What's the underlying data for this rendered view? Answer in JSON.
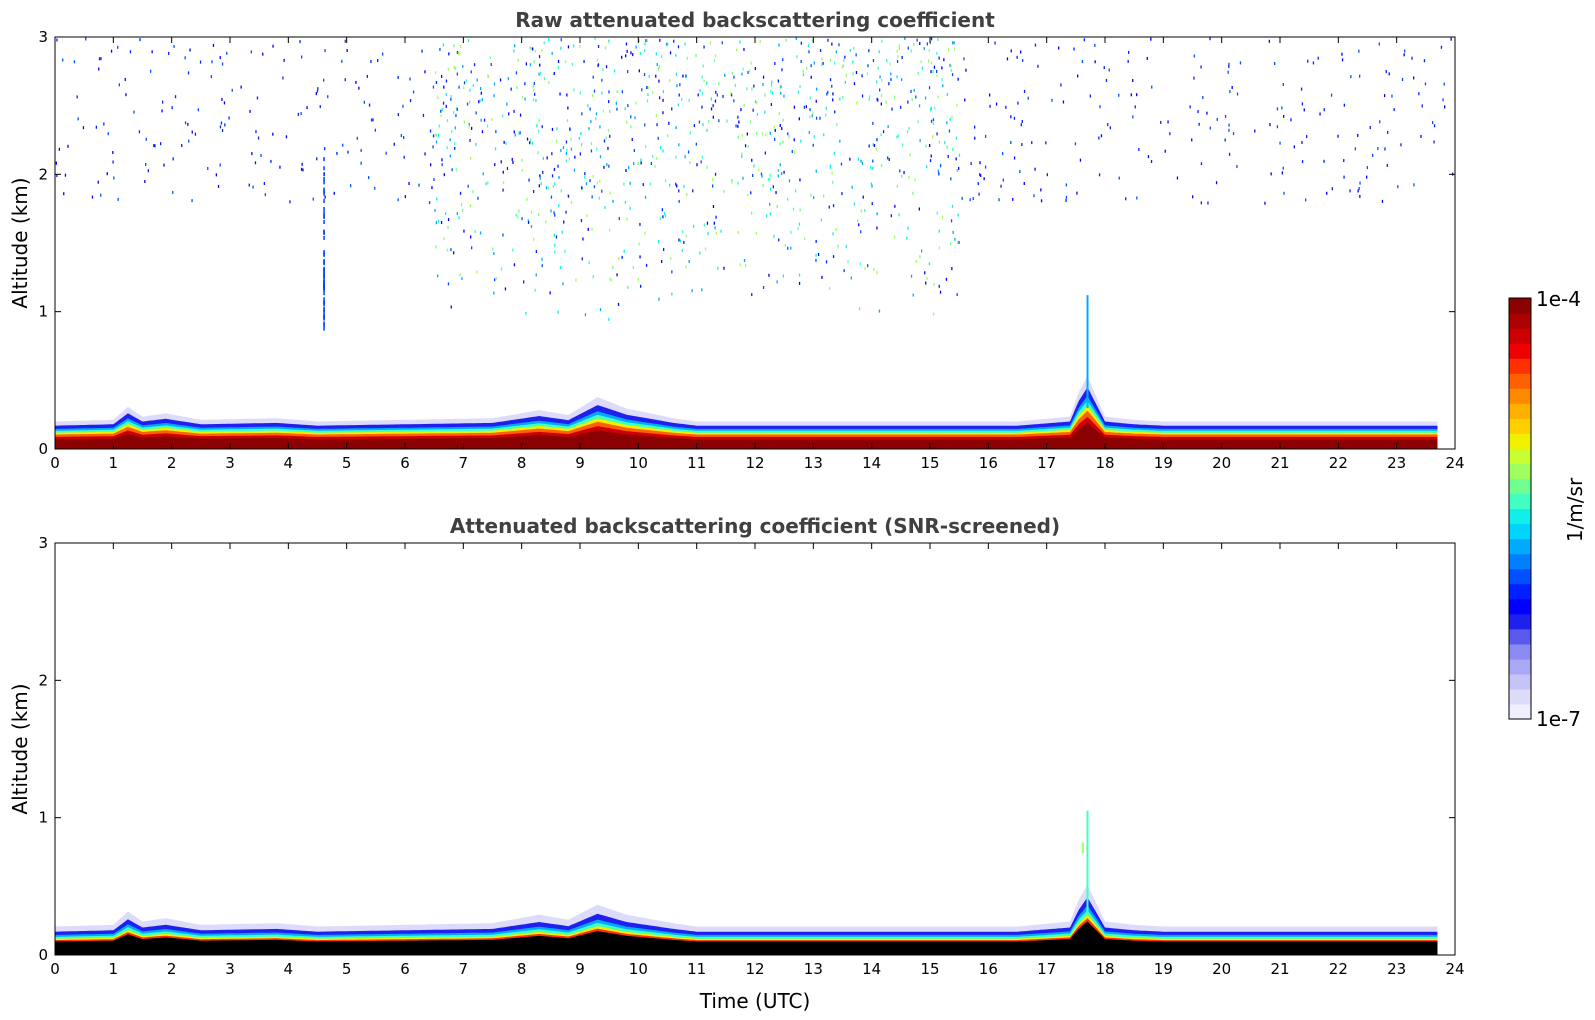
{
  "chart_data": [
    {
      "type": "heatmap",
      "title": "Raw attenuated backscattering coefficient",
      "xlabel": "",
      "ylabel": "Altitude (km)",
      "xlim": [
        0,
        24
      ],
      "ylim": [
        0,
        3
      ],
      "xticks": [
        "0",
        "1",
        "2",
        "3",
        "4",
        "5",
        "6",
        "7",
        "8",
        "9",
        "10",
        "11",
        "12",
        "13",
        "14",
        "15",
        "16",
        "17",
        "18",
        "19",
        "20",
        "21",
        "22",
        "23",
        "24"
      ],
      "yticks": [
        "0",
        "1",
        "2",
        "3"
      ],
      "data_end_hour": 23.7,
      "layer_top_km": [
        [
          0,
          0.17
        ],
        [
          1.0,
          0.18
        ],
        [
          1.25,
          0.26
        ],
        [
          1.5,
          0.2
        ],
        [
          1.9,
          0.22
        ],
        [
          2.5,
          0.18
        ],
        [
          3.8,
          0.19
        ],
        [
          4.5,
          0.17
        ],
        [
          7.5,
          0.19
        ],
        [
          8.3,
          0.24
        ],
        [
          8.8,
          0.21
        ],
        [
          9.3,
          0.32
        ],
        [
          9.8,
          0.25
        ],
        [
          10.6,
          0.19
        ],
        [
          11.0,
          0.17
        ],
        [
          16.5,
          0.17
        ],
        [
          17.4,
          0.2
        ],
        [
          17.55,
          0.35
        ],
        [
          17.7,
          0.45
        ],
        [
          18.0,
          0.2
        ],
        [
          18.5,
          0.18
        ],
        [
          19.0,
          0.17
        ],
        [
          23.7,
          0.17
        ]
      ],
      "upper_noise_region_hours": [
        6.5,
        15.5
      ],
      "notes": "dense noise speckle above 1 km between 7 and 15 UTC; vertical streak near 4.6 UTC; plume to ~1.1 km near 17.7 UTC"
    },
    {
      "type": "heatmap",
      "title": "Attenuated backscattering coefficient (SNR-screened)",
      "xlabel": "Time (UTC)",
      "ylabel": "Altitude (km)",
      "xlim": [
        0,
        24
      ],
      "ylim": [
        0,
        3
      ],
      "xticks": [
        "0",
        "1",
        "2",
        "3",
        "4",
        "5",
        "6",
        "7",
        "8",
        "9",
        "10",
        "11",
        "12",
        "13",
        "14",
        "15",
        "16",
        "17",
        "18",
        "19",
        "20",
        "21",
        "22",
        "23",
        "24"
      ],
      "yticks": [
        "0",
        "1",
        "2",
        "3"
      ],
      "data_end_hour": 23.7,
      "layer_top_km": [
        [
          0,
          0.17
        ],
        [
          1.0,
          0.18
        ],
        [
          1.25,
          0.26
        ],
        [
          1.5,
          0.2
        ],
        [
          1.9,
          0.22
        ],
        [
          2.5,
          0.18
        ],
        [
          3.8,
          0.19
        ],
        [
          4.5,
          0.17
        ],
        [
          7.5,
          0.19
        ],
        [
          8.3,
          0.24
        ],
        [
          8.8,
          0.21
        ],
        [
          9.3,
          0.3
        ],
        [
          9.8,
          0.24
        ],
        [
          10.6,
          0.19
        ],
        [
          11.0,
          0.17
        ],
        [
          16.5,
          0.17
        ],
        [
          17.4,
          0.2
        ],
        [
          17.55,
          0.33
        ],
        [
          17.7,
          0.42
        ],
        [
          18.0,
          0.2
        ],
        [
          18.5,
          0.18
        ],
        [
          19.0,
          0.17
        ],
        [
          23.7,
          0.17
        ]
      ],
      "notes": "noise removed; near-surface core shown in black; plume to ~1.05 km near 17.7 UTC"
    }
  ],
  "colorbar": {
    "label": "1/m/sr",
    "min_label": "1e-7",
    "max_label": "1e-4",
    "colors": [
      "#eeeefc",
      "#dcdcfa",
      "#c4c4f8",
      "#a8a8f4",
      "#8a8af0",
      "#5a5aee",
      "#2020ee",
      "#0000ff",
      "#0020ff",
      "#0050ff",
      "#0080ff",
      "#00aaff",
      "#00d4ff",
      "#10f0e8",
      "#40ffc0",
      "#70ff90",
      "#a0ff60",
      "#c8ff30",
      "#f0f000",
      "#ffd000",
      "#ffb000",
      "#ff8a00",
      "#ff6000",
      "#ff3000",
      "#ee0000",
      "#cc0000",
      "#aa0000",
      "#8b0000"
    ]
  }
}
